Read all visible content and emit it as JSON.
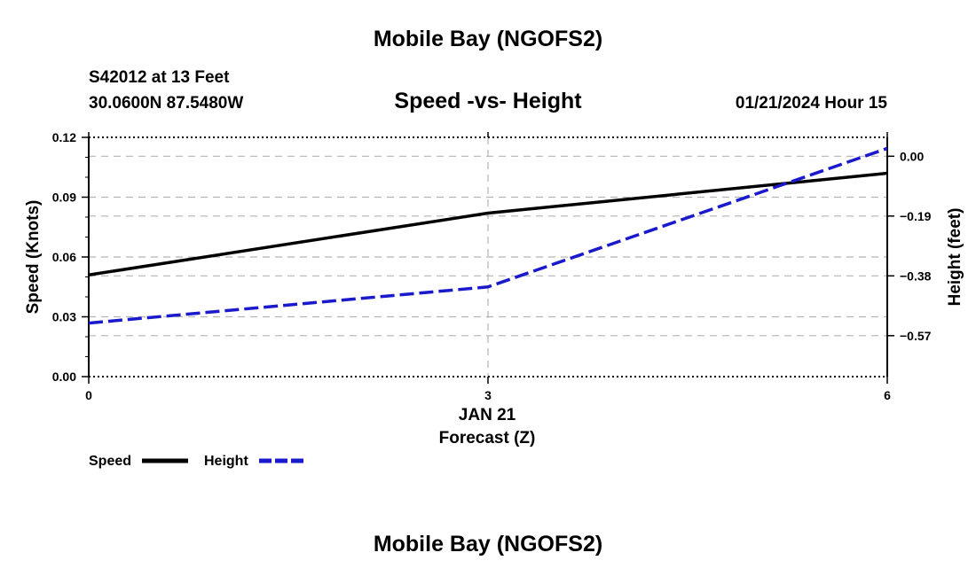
{
  "header": {
    "title": "Mobile Bay (NGOFS2)",
    "footer_title": "Mobile Bay (NGOFS2)",
    "station": "S42012 at 13 Feet",
    "coords": "30.0600N  87.5480W",
    "subtitle": "Speed -vs- Height",
    "datetime": "01/21/2024 Hour 15"
  },
  "chart_data": {
    "type": "line",
    "title": "Speed -vs- Height",
    "xlabel": "Forecast (Z)",
    "x_date_label": "JAN 21",
    "xlim": [
      0,
      6
    ],
    "x_ticks": [
      "0",
      "3",
      "6"
    ],
    "ylabel": "Speed (Knots)",
    "ylim": [
      0,
      0.12
    ],
    "y_ticks": [
      "0.00",
      "0.03",
      "0.06",
      "0.09",
      "0.12"
    ],
    "y2label": "Height (feet)",
    "y2lim": [
      -0.7,
      0.06
    ],
    "y2_ticks": [
      "0.00",
      "-0.19",
      "-0.38",
      "-0.57"
    ],
    "grid": true,
    "legend_position": "bottom-left",
    "series": [
      {
        "name": "Speed",
        "axis": "left",
        "color": "#000000",
        "style": "solid",
        "x": [
          0,
          3,
          6
        ],
        "values": [
          0.051,
          0.082,
          0.102
        ]
      },
      {
        "name": "Height",
        "axis": "right",
        "color": "#1a1acc",
        "style": "dashed",
        "x": [
          0,
          3,
          6
        ],
        "values": [
          -0.53,
          -0.415,
          0.025
        ]
      }
    ]
  }
}
